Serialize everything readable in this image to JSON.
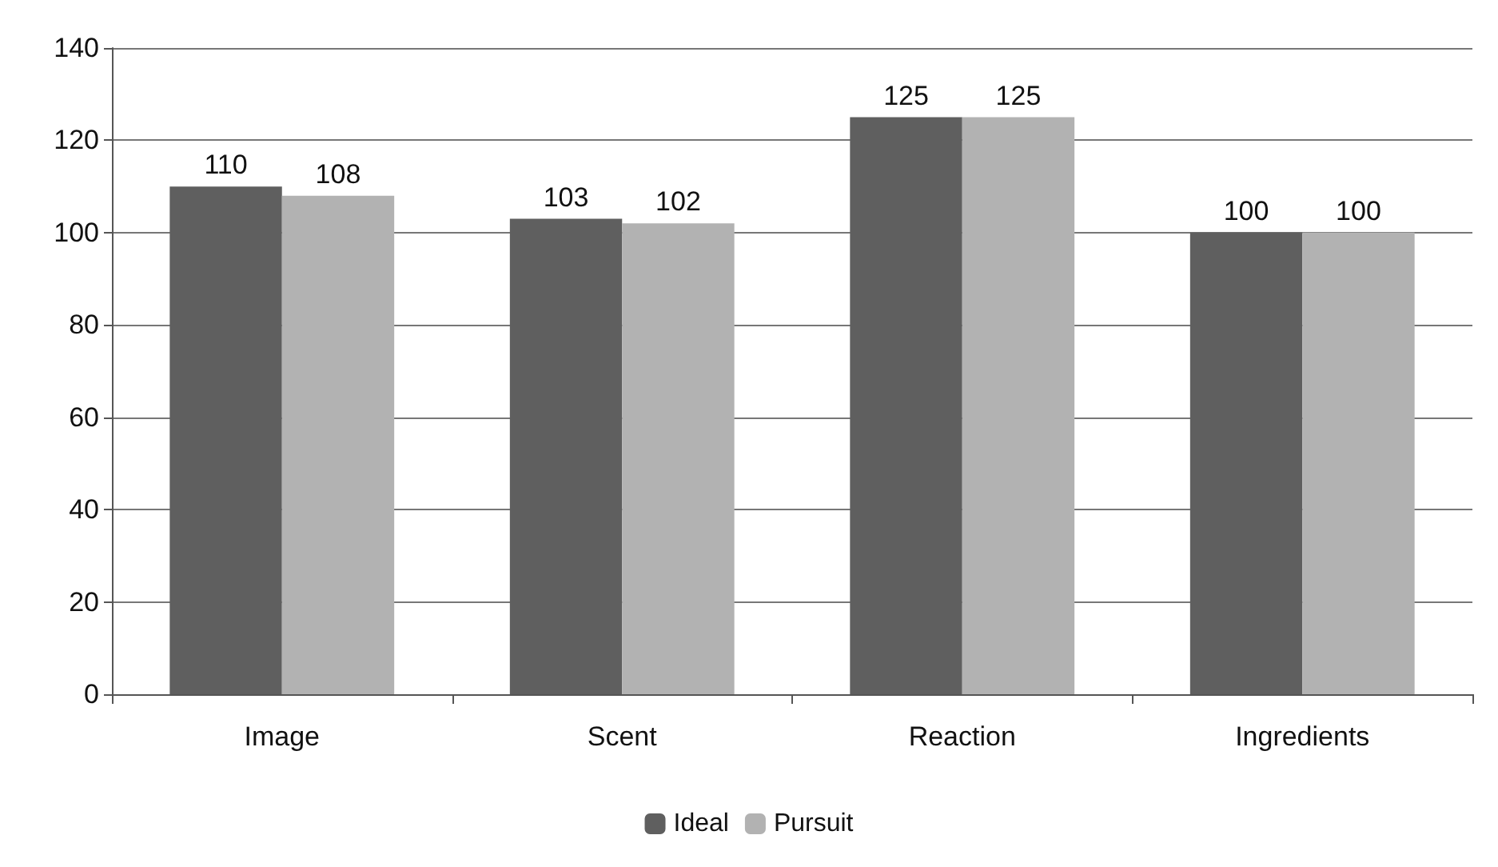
{
  "chart_data": {
    "type": "bar",
    "categories": [
      "Image",
      "Scent",
      "Reaction",
      "Ingredients"
    ],
    "series": [
      {
        "name": "Ideal",
        "color": "#5f5f5f",
        "values": [
          110,
          103,
          125,
          100
        ]
      },
      {
        "name": "Pursuit",
        "color": "#b2b2b2",
        "values": [
          108,
          102,
          125,
          100
        ]
      }
    ],
    "ylim": [
      0,
      140
    ],
    "yticks": [
      0,
      20,
      40,
      60,
      80,
      100,
      120,
      140
    ],
    "grid": "y",
    "legend": "bottom",
    "data_labels": true
  }
}
